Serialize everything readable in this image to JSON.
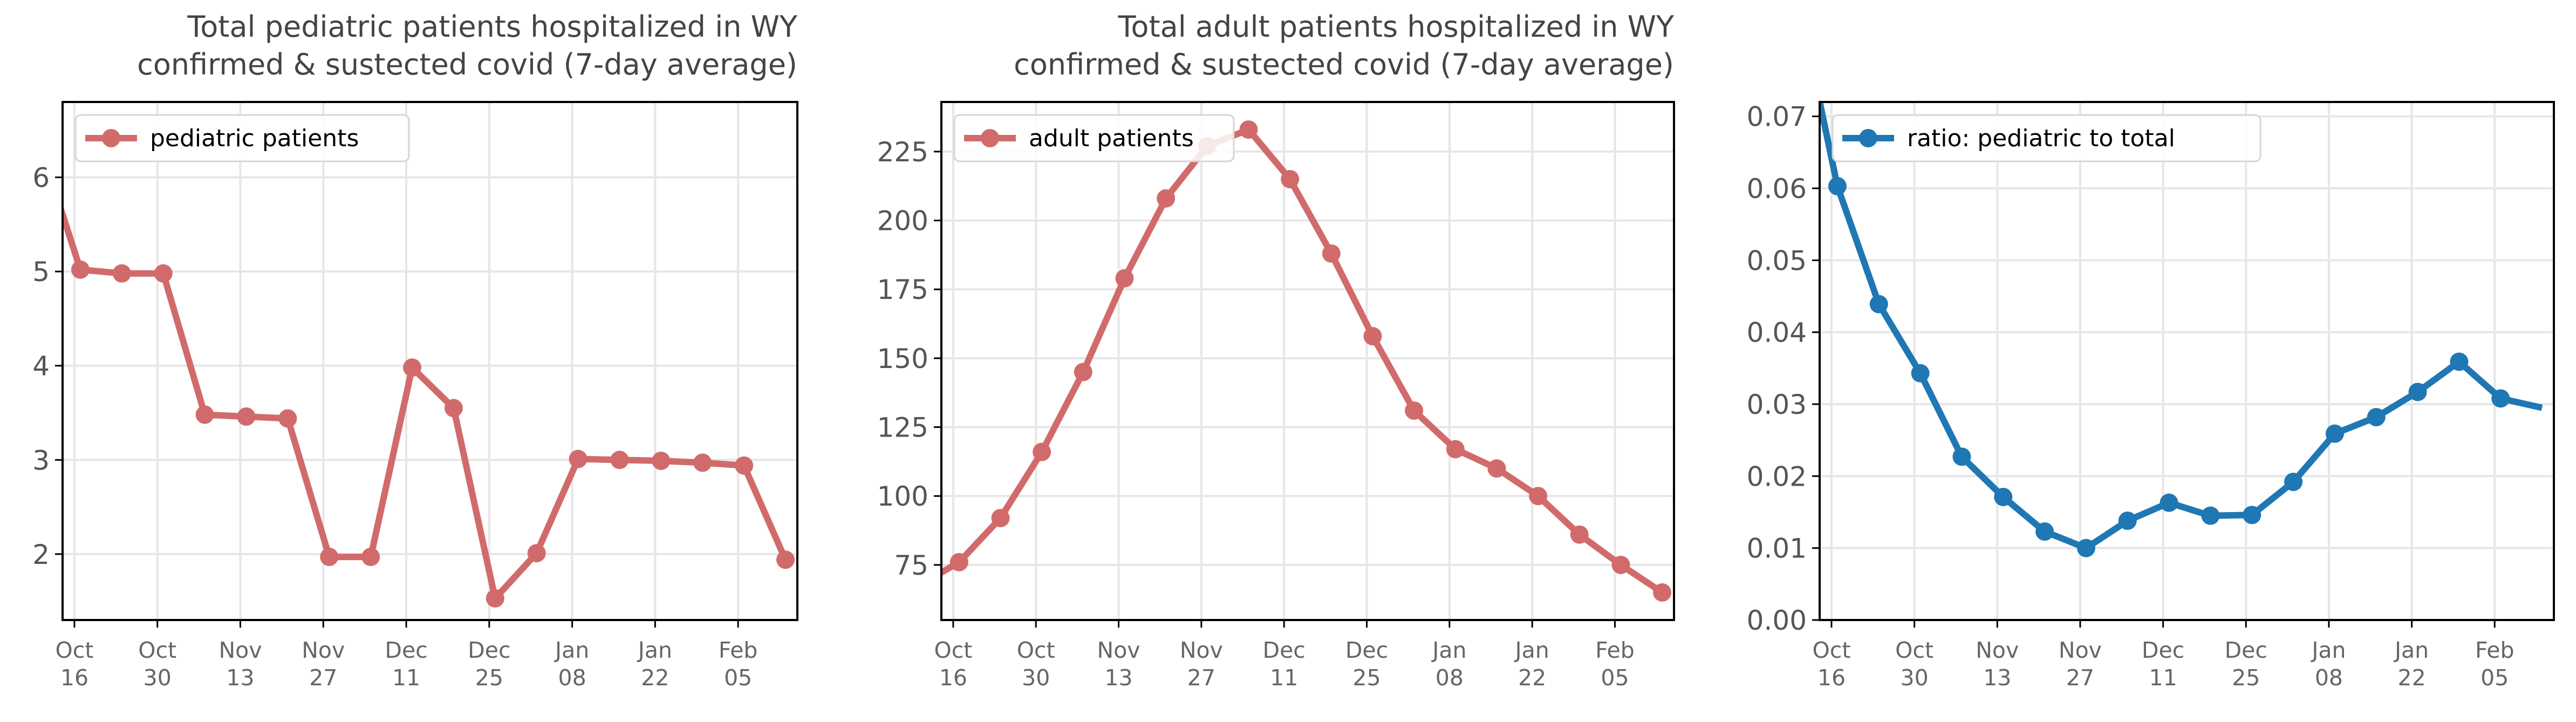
{
  "chart_data": [
    {
      "type": "line",
      "title": [
        "Total pediatric patients hospitalized in WY",
        "confirmed & sustected covid (7-day average)"
      ],
      "x_ticks": [
        [
          "Oct",
          "16"
        ],
        [
          "Oct",
          "30"
        ],
        [
          "Nov",
          "13"
        ],
        [
          "Nov",
          "27"
        ],
        [
          "Dec",
          "11"
        ],
        [
          "Dec",
          "25"
        ],
        [
          "Jan",
          "08"
        ],
        [
          "Jan",
          "22"
        ],
        [
          "Feb",
          "05"
        ]
      ],
      "x_range": [
        "2021-10-14",
        "2022-02-15"
      ],
      "ylim": [
        1.3,
        6.8
      ],
      "y_ticks": [
        2,
        3,
        4,
        5,
        6
      ],
      "y_tick_labels": [
        "2",
        "3",
        "4",
        "5",
        "6"
      ],
      "grid": true,
      "legend_position": "top-left",
      "series": [
        {
          "name": "pediatric patients",
          "color": "#d16b6b",
          "x": [
            "2021-10-13",
            "2021-10-17",
            "2021-10-24",
            "2021-10-31",
            "2021-11-07",
            "2021-11-14",
            "2021-11-21",
            "2021-11-28",
            "2021-12-05",
            "2021-12-12",
            "2021-12-19",
            "2021-12-26",
            "2022-01-02",
            "2022-01-09",
            "2022-01-16",
            "2022-01-23",
            "2022-01-30",
            "2022-02-06",
            "2022-02-13"
          ],
          "values": [
            5.8,
            5.02,
            4.98,
            4.98,
            3.48,
            3.46,
            3.44,
            1.97,
            1.97,
            3.98,
            3.55,
            1.53,
            2.01,
            3.01,
            3.0,
            2.99,
            2.97,
            2.94,
            1.94
          ],
          "marker_start_index": 1
        }
      ]
    },
    {
      "type": "line",
      "title": [
        "Total adult patients hospitalized in WY",
        "confirmed & sustected covid (7-day average)"
      ],
      "x_ticks": [
        [
          "Oct",
          "16"
        ],
        [
          "Oct",
          "30"
        ],
        [
          "Nov",
          "13"
        ],
        [
          "Nov",
          "27"
        ],
        [
          "Dec",
          "11"
        ],
        [
          "Dec",
          "25"
        ],
        [
          "Jan",
          "08"
        ],
        [
          "Jan",
          "22"
        ],
        [
          "Feb",
          "05"
        ]
      ],
      "x_range": [
        "2021-10-14",
        "2022-02-15"
      ],
      "ylim": [
        55,
        243
      ],
      "y_ticks": [
        75,
        100,
        125,
        150,
        175,
        200,
        225
      ],
      "y_tick_labels": [
        "75",
        "100",
        "125",
        "150",
        "175",
        "200",
        "225"
      ],
      "grid": true,
      "legend_position": "top-left",
      "series": [
        {
          "name": "adult patients",
          "color": "#d16b6b",
          "x": [
            "2021-10-13",
            "2021-10-17",
            "2021-10-24",
            "2021-10-31",
            "2021-11-07",
            "2021-11-14",
            "2021-11-21",
            "2021-11-28",
            "2021-12-05",
            "2021-12-12",
            "2021-12-19",
            "2021-12-26",
            "2022-01-02",
            "2022-01-09",
            "2022-01-16",
            "2022-01-23",
            "2022-01-30",
            "2022-02-06",
            "2022-02-13"
          ],
          "values": [
            71,
            76,
            92,
            116,
            145,
            179,
            208,
            227,
            233,
            215,
            188,
            158,
            131,
            117,
            110,
            100,
            86,
            75,
            65
          ],
          "marker_start_index": 1
        }
      ]
    },
    {
      "type": "line",
      "title": "",
      "x_ticks": [
        [
          "Oct",
          "16"
        ],
        [
          "Oct",
          "30"
        ],
        [
          "Nov",
          "13"
        ],
        [
          "Nov",
          "27"
        ],
        [
          "Dec",
          "11"
        ],
        [
          "Dec",
          "25"
        ],
        [
          "Jan",
          "08"
        ],
        [
          "Jan",
          "22"
        ],
        [
          "Feb",
          "05"
        ]
      ],
      "x_range": [
        "2021-10-14",
        "2022-02-15"
      ],
      "ylim": [
        0,
        0.072
      ],
      "y_ticks": [
        0,
        0.01,
        0.02,
        0.03,
        0.04,
        0.05,
        0.06,
        0.07
      ],
      "y_tick_labels": [
        "0.00",
        "0.01",
        "0.02",
        "0.03",
        "0.04",
        "0.05",
        "0.06",
        "0.07"
      ],
      "grid": true,
      "legend_position": "top-left",
      "series": [
        {
          "name": "ratio: pediatric to total",
          "color": "#1f77b4",
          "x": [
            "2021-10-13",
            "2021-10-17",
            "2021-10-24",
            "2021-10-31",
            "2021-11-07",
            "2021-11-14",
            "2021-11-21",
            "2021-11-28",
            "2021-12-05",
            "2021-12-12",
            "2021-12-19",
            "2021-12-26",
            "2022-01-02",
            "2022-01-09",
            "2022-01-16",
            "2022-01-23",
            "2022-01-30",
            "2022-02-06",
            "2022-02-13"
          ],
          "values": [
            0.076,
            0.0603,
            0.0439,
            0.0343,
            0.0227,
            0.0171,
            0.0123,
            0.01,
            0.0138,
            0.0163,
            0.0145,
            0.0146,
            0.0192,
            0.0259,
            0.0282,
            0.0317,
            0.0359,
            0.0308,
            0.0295
          ],
          "marker_start_index": 1,
          "marker_end_index": 17
        }
      ]
    }
  ]
}
